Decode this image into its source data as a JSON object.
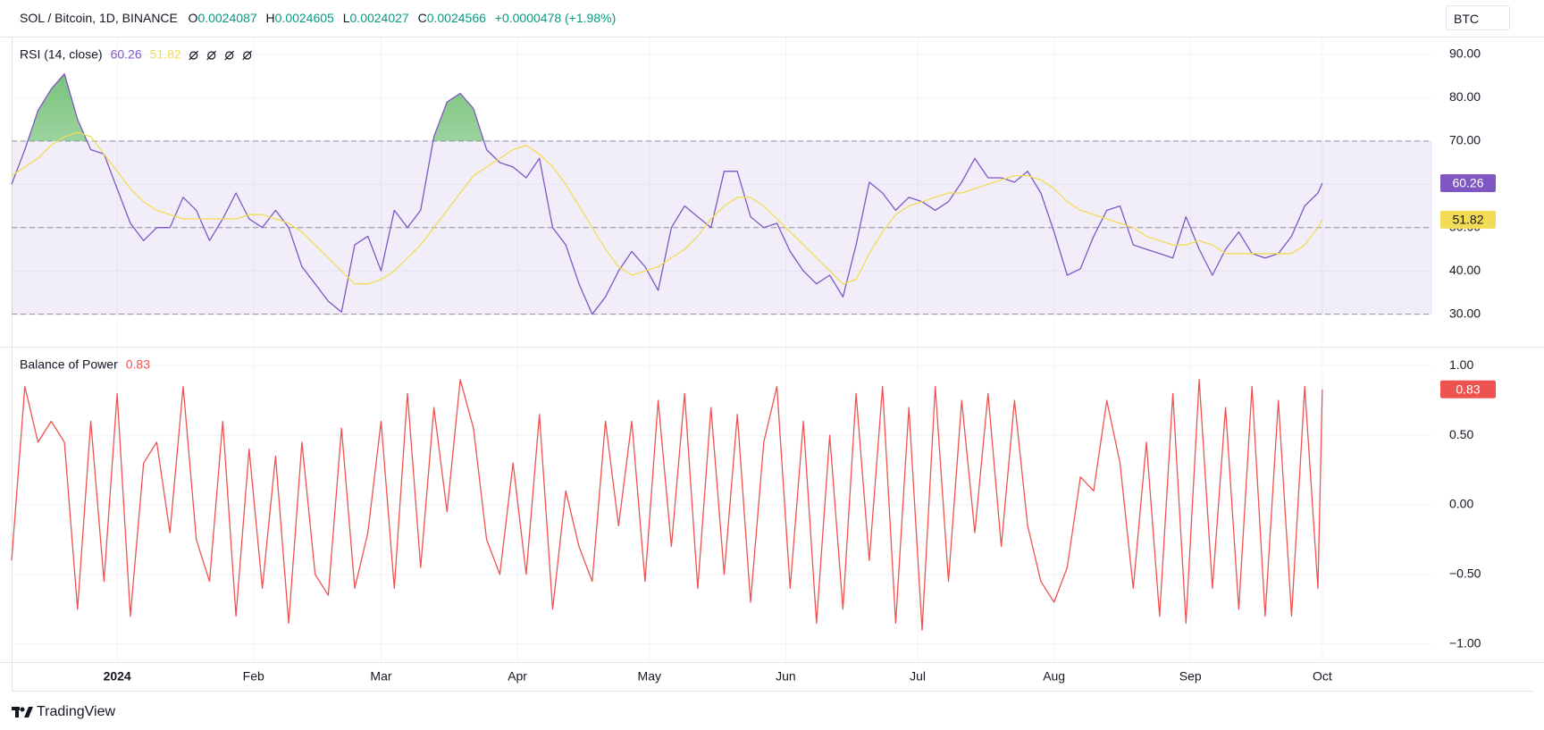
{
  "header": {
    "symbol": "SOL / Bitcoin, 1D, BINANCE",
    "o_label": "O",
    "open": "0.0024087",
    "h_label": "H",
    "high": "0.0024605",
    "l_label": "L",
    "low": "0.0024027",
    "c_label": "C",
    "close": "0.0024566",
    "change": "+0.0000478 (+1.98%)",
    "currency": "BTC"
  },
  "chart_data": [
    {
      "type": "line",
      "title": "RSI (14, close)",
      "x": [
        0,
        3,
        6,
        9,
        12,
        15,
        18,
        21,
        24,
        27,
        30,
        33,
        36,
        39,
        42,
        45,
        48,
        51,
        54,
        57,
        60,
        63,
        66,
        69,
        72,
        75,
        78,
        81,
        84,
        87,
        90,
        93,
        96,
        99,
        102,
        105,
        108,
        111,
        114,
        117,
        120,
        123,
        126,
        129,
        132,
        135,
        138,
        141,
        144,
        147,
        150,
        153,
        156,
        159,
        162,
        165,
        168,
        171,
        174,
        177,
        180,
        183,
        186,
        189,
        192,
        195,
        198,
        201,
        204,
        207,
        210,
        213,
        216,
        219,
        222,
        225,
        228,
        231,
        234,
        237,
        240,
        243,
        246,
        249,
        252,
        255,
        258,
        261,
        264,
        267,
        270,
        273,
        276,
        279,
        282,
        285,
        288,
        291,
        294,
        297,
        298
      ],
      "xlim": [
        0,
        323
      ],
      "ylim": [
        22.5,
        93.9
      ],
      "yticks": [
        {
          "value": 30,
          "label": "30.00"
        },
        {
          "value": 40,
          "label": "40.00"
        },
        {
          "value": 50,
          "label": "50.00"
        },
        {
          "value": 60,
          "label": "60.00"
        },
        {
          "value": 70,
          "label": "70.00"
        },
        {
          "value": 80,
          "label": "80.00"
        },
        {
          "value": 90,
          "label": "90.00"
        }
      ],
      "band": [
        30,
        70
      ],
      "levels": [
        70,
        50,
        30
      ],
      "band_color": "#7e57c2",
      "overbought_color": "#4caf50",
      "oversold_color": "#ef5350",
      "series": [
        {
          "color": "#7e57c2",
          "values": [
            60,
            68,
            77,
            82,
            85.5,
            75,
            68,
            67,
            59,
            51,
            47,
            50,
            50,
            57,
            54,
            47,
            52,
            58,
            52,
            50,
            54,
            50,
            41,
            37,
            33,
            30.5,
            46,
            48,
            40,
            54,
            50,
            54,
            71,
            79,
            81,
            77.5,
            68,
            65,
            64,
            61.5,
            66,
            50,
            46,
            37,
            30,
            34,
            40,
            44.5,
            41,
            35.5,
            50,
            55,
            52.5,
            50,
            63,
            63,
            52.5,
            50,
            51,
            44.5,
            40,
            37,
            39,
            34,
            46,
            60.5,
            58,
            54,
            57,
            56,
            54,
            56,
            60.5,
            66,
            61.5,
            61.5,
            60.5,
            63,
            58,
            49,
            39,
            40.5,
            48,
            54,
            55,
            46,
            45,
            44,
            43,
            52.5,
            45,
            39,
            45,
            49,
            44,
            43,
            44,
            48,
            55,
            58,
            60.26
          ],
          "badge": true
        },
        {
          "color": "#f2dc56",
          "values": [
            62,
            64,
            66,
            69,
            71,
            72,
            71,
            67,
            63,
            59,
            56,
            54,
            53,
            52,
            52,
            52,
            52,
            52,
            53,
            53,
            52,
            51,
            49,
            46,
            43,
            40,
            37,
            37,
            38,
            40,
            43,
            46,
            50,
            54,
            58,
            62,
            64,
            66,
            68,
            69,
            67,
            64,
            60,
            55,
            50,
            45,
            41,
            39,
            40,
            41,
            43,
            45,
            48,
            52,
            55,
            57,
            57,
            55,
            52,
            49,
            46,
            43,
            40,
            37,
            38,
            44,
            49,
            53,
            55,
            56,
            57,
            58,
            58,
            59,
            60,
            61,
            62,
            62,
            61,
            59,
            56,
            54,
            53,
            52,
            51,
            50,
            48,
            47,
            46,
            46,
            47,
            46,
            44,
            44,
            44,
            44,
            44,
            44,
            46,
            50,
            51.82
          ],
          "badge": true
        }
      ]
    },
    {
      "type": "line",
      "title": "Balance of Power",
      "x": [
        0,
        3,
        6,
        9,
        12,
        15,
        18,
        21,
        24,
        27,
        30,
        33,
        36,
        39,
        42,
        45,
        48,
        51,
        54,
        57,
        60,
        63,
        66,
        69,
        72,
        75,
        78,
        81,
        84,
        87,
        90,
        93,
        96,
        99,
        102,
        105,
        108,
        111,
        114,
        117,
        120,
        123,
        126,
        129,
        132,
        135,
        138,
        141,
        144,
        147,
        150,
        153,
        156,
        159,
        162,
        165,
        168,
        171,
        174,
        177,
        180,
        183,
        186,
        189,
        192,
        195,
        198,
        201,
        204,
        207,
        210,
        213,
        216,
        219,
        222,
        225,
        228,
        231,
        234,
        237,
        240,
        243,
        246,
        249,
        252,
        255,
        258,
        261,
        264,
        267,
        270,
        273,
        276,
        279,
        282,
        285,
        288,
        291,
        294,
        297,
        298
      ],
      "xlim": [
        0,
        323
      ],
      "ylim": [
        -1.13,
        1.13
      ],
      "yticks": [
        {
          "value": -1,
          "label": "−1.00"
        },
        {
          "value": -0.5,
          "label": "−0.50"
        },
        {
          "value": 0,
          "label": "0.00"
        },
        {
          "value": 0.5,
          "label": "0.50"
        },
        {
          "value": 1,
          "label": "1.00"
        }
      ],
      "xticks": [
        {
          "value": 24,
          "label": "2024"
        },
        {
          "value": 55,
          "label": "Feb"
        },
        {
          "value": 84,
          "label": "Mar"
        },
        {
          "value": 115,
          "label": "Apr"
        },
        {
          "value": 145,
          "label": "May"
        },
        {
          "value": 176,
          "label": "Jun"
        },
        {
          "value": 206,
          "label": "Jul"
        },
        {
          "value": 237,
          "label": "Aug"
        },
        {
          "value": 268,
          "label": "Sep"
        },
        {
          "value": 298,
          "label": "Oct"
        }
      ],
      "series": [
        {
          "color": "#ef5350",
          "values": [
            -0.4,
            0.85,
            0.45,
            0.6,
            0.45,
            -0.75,
            0.6,
            -0.55,
            0.8,
            -0.8,
            0.3,
            0.45,
            -0.2,
            0.85,
            -0.25,
            -0.55,
            0.6,
            -0.8,
            0.4,
            -0.6,
            0.35,
            -0.85,
            0.45,
            -0.5,
            -0.65,
            0.55,
            -0.6,
            -0.2,
            0.6,
            -0.6,
            0.8,
            -0.45,
            0.7,
            -0.05,
            0.9,
            0.55,
            -0.25,
            -0.5,
            0.3,
            -0.5,
            0.65,
            -0.75,
            0.1,
            -0.3,
            -0.55,
            0.6,
            -0.15,
            0.6,
            -0.55,
            0.75,
            -0.3,
            0.8,
            -0.6,
            0.7,
            -0.5,
            0.65,
            -0.7,
            0.45,
            0.85,
            -0.6,
            0.6,
            -0.85,
            0.5,
            -0.75,
            0.8,
            -0.4,
            0.85,
            -0.85,
            0.7,
            -0.9,
            0.85,
            -0.55,
            0.75,
            -0.2,
            0.8,
            -0.3,
            0.75,
            -0.15,
            -0.55,
            -0.7,
            -0.45,
            0.2,
            0.1,
            0.75,
            0.3,
            -0.6,
            0.45,
            -0.8,
            0.8,
            -0.85,
            0.9,
            -0.6,
            0.7,
            -0.75,
            0.85,
            -0.8,
            0.75,
            -0.8,
            0.85,
            -0.6,
            0.83
          ],
          "badge": true
        }
      ]
    }
  ],
  "footer": {
    "brand": "TradingView"
  }
}
